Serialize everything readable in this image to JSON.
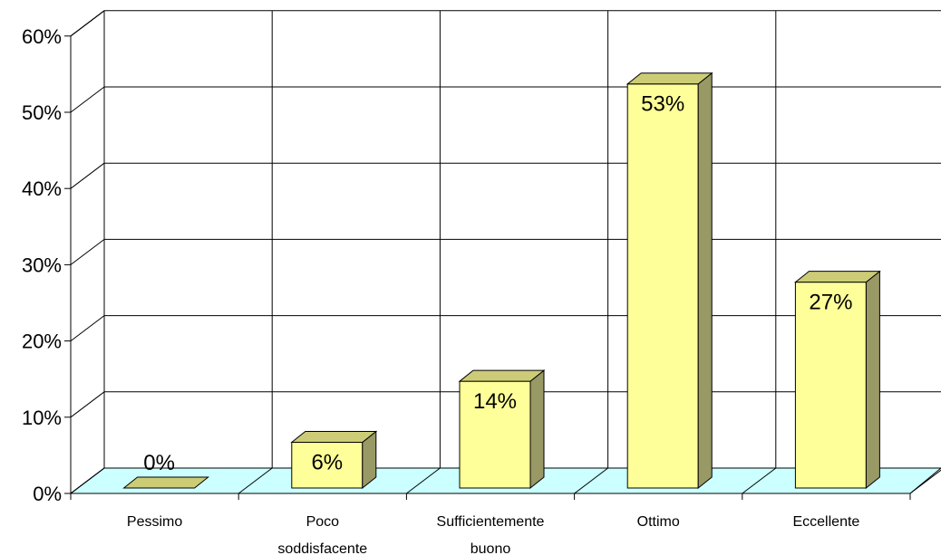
{
  "chart_data": {
    "type": "bar",
    "three_d": true,
    "categories": [
      "Pessimo",
      "Poco soddisfacente",
      "Sufficientemente buono",
      "Ottimo",
      "Eccellente"
    ],
    "values": [
      0,
      6,
      14,
      53,
      27
    ],
    "data_labels": [
      "0%",
      "6%",
      "14%",
      "53%",
      "27%"
    ],
    "yticks": [
      "0%",
      "10%",
      "20%",
      "30%",
      "40%",
      "50%",
      "60%"
    ],
    "ylim": [
      0,
      60
    ],
    "grid": true,
    "legend": "none",
    "title": "",
    "xlabel": "",
    "ylabel": "",
    "colors": {
      "bar_front": "#ffff99",
      "bar_side": "#999966",
      "bar_top": "#cccc77",
      "floor": "#ccffff",
      "grid": "#000000"
    }
  }
}
